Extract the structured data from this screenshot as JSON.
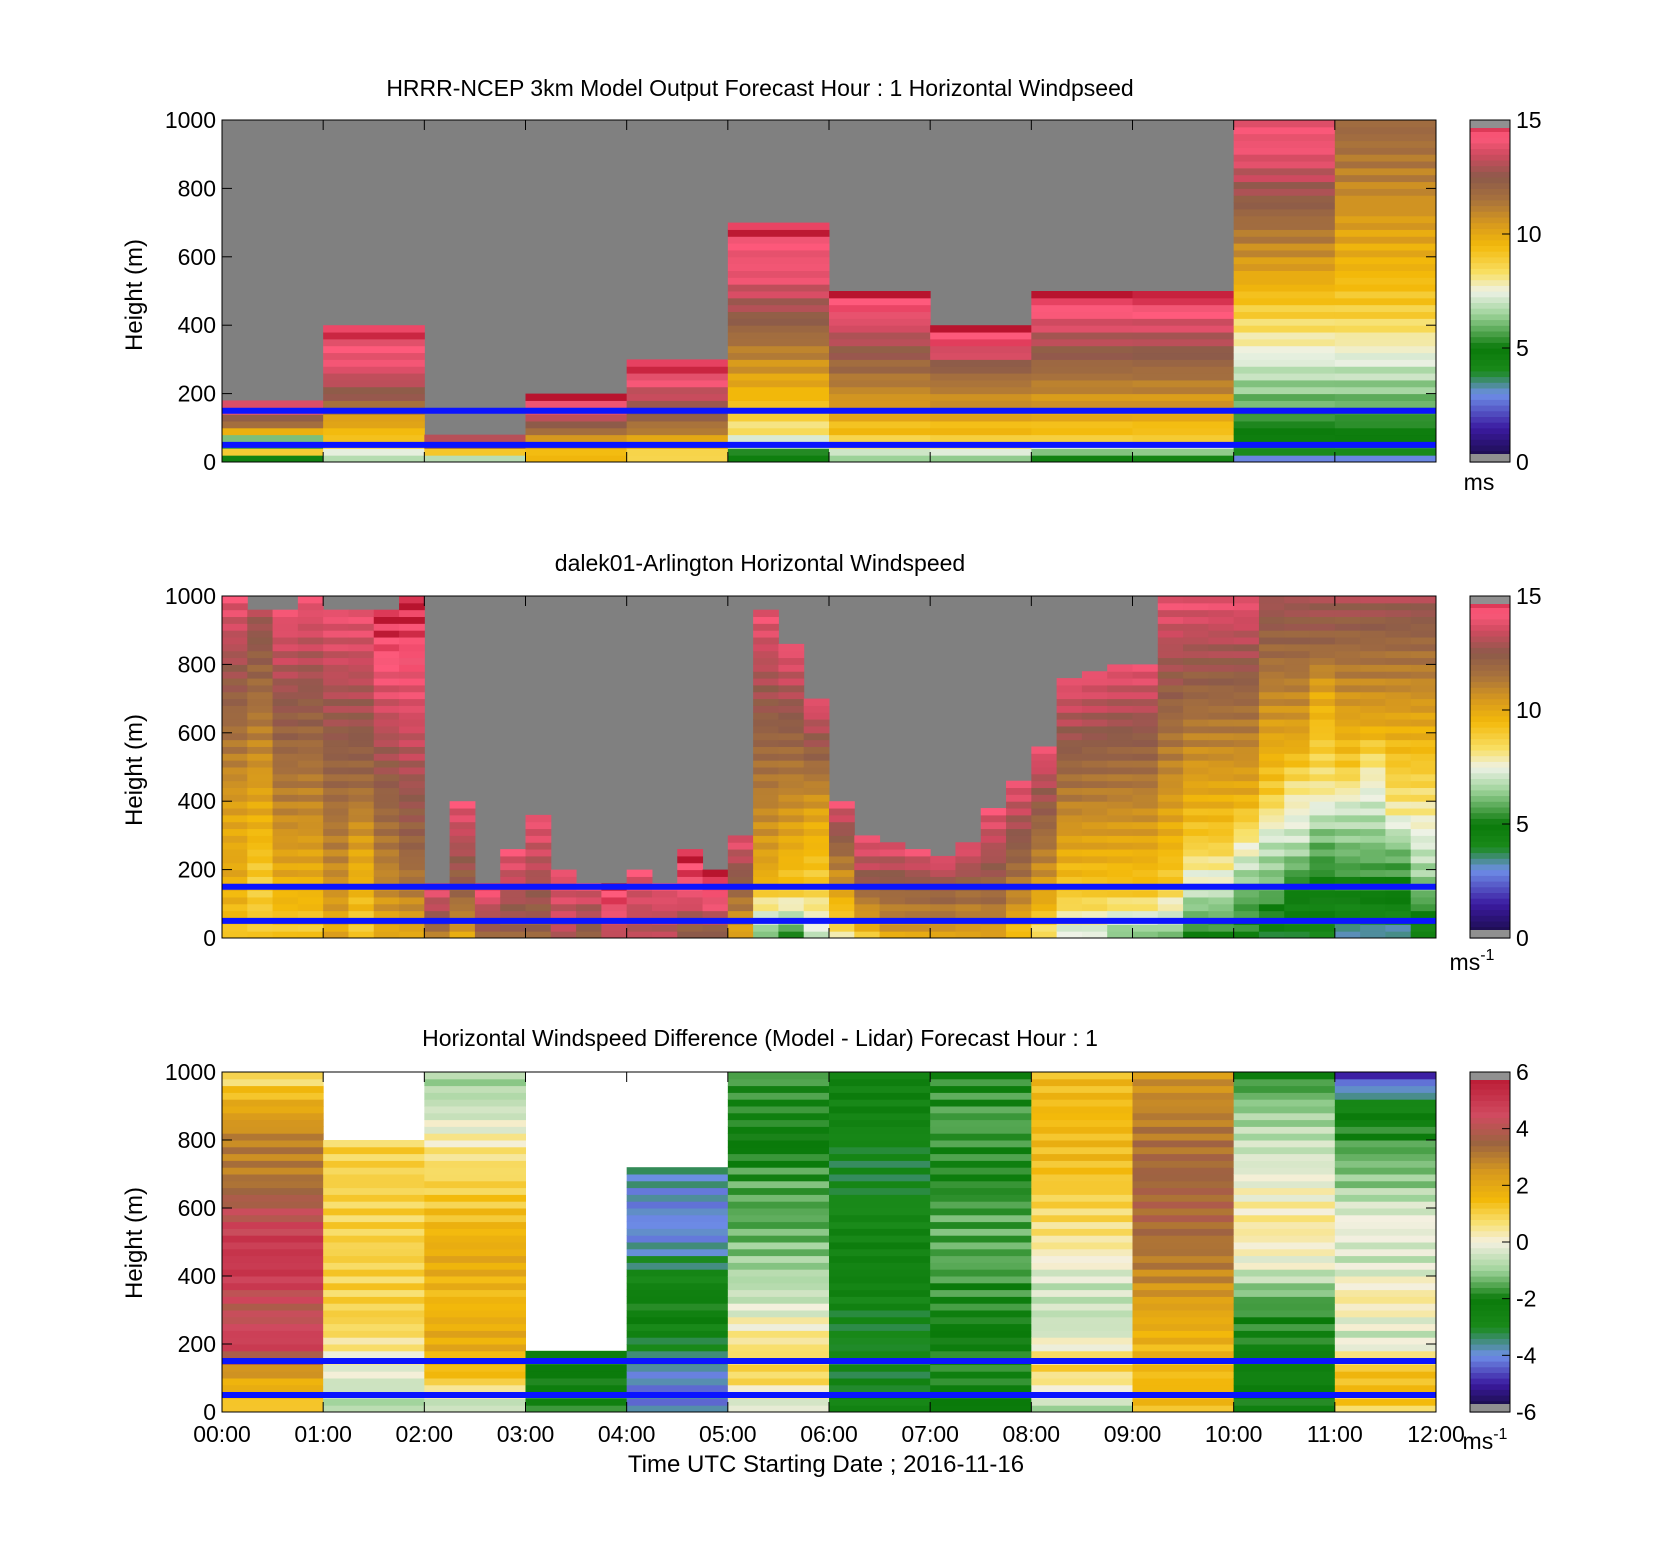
{
  "figure": {
    "xlabel": "Time UTC  Starting Date ; 2016-11-16",
    "xticks": [
      "00:00",
      "01:00",
      "02:00",
      "03:00",
      "04:00",
      "05:00",
      "06:00",
      "07:00",
      "08:00",
      "09:00",
      "10:00",
      "11:00",
      "12:00"
    ]
  },
  "guide_lines": {
    "color": "#0a14ff",
    "heights_m": [
      150,
      50
    ]
  },
  "chart_data": [
    {
      "type": "heatmap",
      "title": "HRRR-NCEP 3km Model Output   Forecast Hour : 1 Horizontal Windpseed",
      "ylabel": "Height (m)",
      "ylim": [
        0,
        1000
      ],
      "yticks": [
        "0",
        "200",
        "400",
        "600",
        "800",
        "1000"
      ],
      "x_hours": [
        0,
        12
      ],
      "colorbar": {
        "min": 0,
        "max": 15,
        "ticks": [
          "0",
          "5",
          "10",
          "15"
        ],
        "unit": "ms",
        "unit_sup": ""
      },
      "missing_color": "#808080",
      "guide_lines_m": [
        150,
        50
      ],
      "columns": [
        {
          "t": "00:00",
          "top_m": 170,
          "profile": [
            2,
            9,
            4,
            10,
            12,
            14,
            14
          ]
        },
        {
          "t": "01:00",
          "top_m": 400,
          "profile": [
            6,
            9,
            10,
            12,
            13,
            14,
            14,
            15
          ]
        },
        {
          "t": "02:00",
          "top_m": 80,
          "profile": [
            5,
            9,
            12,
            14
          ]
        },
        {
          "t": "03:00",
          "top_m": 200,
          "profile": [
            9,
            10,
            11,
            13,
            14,
            15
          ]
        },
        {
          "t": "04:00",
          "top_m": 300,
          "profile": [
            8,
            10,
            12,
            13,
            14,
            15
          ]
        },
        {
          "t": "05:00",
          "top_m": 700,
          "profile": [
            4,
            8,
            9,
            10,
            11,
            12,
            13,
            14,
            14,
            15
          ]
        },
        {
          "t": "06:00",
          "top_m": 500,
          "profile": [
            6,
            9,
            10,
            11,
            12,
            13,
            14,
            15
          ]
        },
        {
          "t": "07:00",
          "top_m": 400,
          "profile": [
            6,
            9,
            10,
            11,
            12,
            14,
            15
          ]
        },
        {
          "t": "08:00",
          "top_m": 500,
          "profile": [
            4,
            9,
            10,
            11,
            12,
            13,
            14,
            15
          ]
        },
        {
          "t": "09:00",
          "top_m": 500,
          "profile": [
            4,
            9,
            10,
            11,
            12,
            13,
            14,
            15
          ]
        },
        {
          "t": "10:00",
          "top_m": 1000,
          "profile": [
            3,
            5,
            6,
            7,
            8,
            9,
            10,
            11,
            12,
            13,
            14,
            14
          ]
        },
        {
          "t": "11:00",
          "top_m": 1000,
          "profile": [
            3,
            5,
            6,
            7,
            8,
            9,
            9.5,
            10,
            10.5,
            11,
            11.5,
            12
          ]
        }
      ]
    },
    {
      "type": "heatmap",
      "title": "dalek01-Arlington  Horizontal Windspeed",
      "ylabel": "Height (m)",
      "ylim": [
        0,
        1000
      ],
      "yticks": [
        "0",
        "200",
        "400",
        "600",
        "800",
        "1000"
      ],
      "x_hours": [
        0,
        12
      ],
      "colorbar": {
        "min": 0,
        "max": 15,
        "ticks": [
          "0",
          "5",
          "10",
          "15"
        ],
        "unit": "ms",
        "unit_sup": "-1"
      },
      "missing_color": "#808080",
      "guide_lines_m": [
        150,
        50
      ],
      "columns": [
        {
          "t": "00:00",
          "top_m": 1000,
          "profile": [
            9,
            10,
            10,
            11,
            12,
            13,
            14
          ]
        },
        {
          "t": "00:15",
          "top_m": 950,
          "profile": [
            9,
            9,
            10,
            11,
            12,
            13
          ]
        },
        {
          "t": "00:30",
          "top_m": 950,
          "profile": [
            9,
            10,
            11,
            12,
            13,
            14
          ]
        },
        {
          "t": "00:45",
          "top_m": 1000,
          "profile": [
            9,
            10,
            11,
            12,
            13,
            14
          ]
        },
        {
          "t": "01:00",
          "top_m": 950,
          "profile": [
            10,
            11,
            12,
            13,
            14
          ]
        },
        {
          "t": "01:15",
          "top_m": 950,
          "profile": [
            9,
            10,
            12,
            13,
            14
          ]
        },
        {
          "t": "01:30",
          "top_m": 950,
          "profile": [
            10,
            11,
            12,
            13,
            14,
            15
          ]
        },
        {
          "t": "01:45",
          "top_m": 1000,
          "profile": [
            10,
            12,
            13,
            14,
            15
          ]
        },
        {
          "t": "02:00",
          "top_m": 150,
          "profile": [
            11,
            13,
            14
          ]
        },
        {
          "t": "02:15",
          "top_m": 400,
          "profile": [
            10,
            12,
            13,
            14
          ]
        },
        {
          "t": "02:30",
          "top_m": 150,
          "profile": [
            12,
            13,
            15
          ]
        },
        {
          "t": "02:45",
          "top_m": 250,
          "profile": [
            12,
            13,
            14
          ]
        },
        {
          "t": "03:00",
          "top_m": 350,
          "profile": [
            12,
            13,
            14
          ]
        },
        {
          "t": "03:15",
          "top_m": 200,
          "profile": [
            13,
            14
          ]
        },
        {
          "t": "03:30",
          "top_m": 150,
          "profile": [
            12,
            14
          ]
        },
        {
          "t": "03:45",
          "top_m": 150,
          "profile": [
            13,
            15
          ]
        },
        {
          "t": "04:00",
          "top_m": 200,
          "profile": [
            13,
            14
          ]
        },
        {
          "t": "04:15",
          "top_m": 150,
          "profile": [
            13,
            14
          ]
        },
        {
          "t": "04:30",
          "top_m": 250,
          "profile": [
            12,
            14,
            15
          ]
        },
        {
          "t": "04:45",
          "top_m": 200,
          "profile": [
            12,
            14,
            15
          ]
        },
        {
          "t": "05:00",
          "top_m": 300,
          "profile": [
            10,
            12,
            14
          ]
        },
        {
          "t": "05:15",
          "top_m": 950,
          "profile": [
            6,
            10,
            11,
            12,
            13,
            14
          ]
        },
        {
          "t": "05:30",
          "top_m": 850,
          "profile": [
            5,
            9,
            10,
            11,
            12,
            13,
            14
          ]
        },
        {
          "t": "05:45",
          "top_m": 700,
          "profile": [
            7,
            9,
            10,
            12,
            14
          ]
        },
        {
          "t": "06:00",
          "top_m": 400,
          "profile": [
            8,
            10,
            12,
            14
          ]
        },
        {
          "t": "06:15",
          "top_m": 300,
          "profile": [
            9,
            11,
            13,
            14
          ]
        },
        {
          "t": "06:30",
          "top_m": 280,
          "profile": [
            10,
            12,
            14
          ]
        },
        {
          "t": "06:45",
          "top_m": 260,
          "profile": [
            10,
            12,
            14
          ]
        },
        {
          "t": "07:00",
          "top_m": 240,
          "profile": [
            10,
            12,
            14
          ]
        },
        {
          "t": "07:15",
          "top_m": 270,
          "profile": [
            10,
            12,
            14
          ]
        },
        {
          "t": "07:30",
          "top_m": 380,
          "profile": [
            10,
            12,
            13,
            14
          ]
        },
        {
          "t": "07:45",
          "top_m": 450,
          "profile": [
            9,
            11,
            12,
            13,
            14
          ]
        },
        {
          "t": "08:00",
          "top_m": 550,
          "profile": [
            8,
            10,
            11,
            12,
            13,
            14
          ]
        },
        {
          "t": "08:15",
          "top_m": 750,
          "profile": [
            7,
            9,
            10,
            11,
            12,
            13,
            14
          ]
        },
        {
          "t": "08:30",
          "top_m": 780,
          "profile": [
            7,
            9,
            10,
            11,
            12,
            13,
            14
          ]
        },
        {
          "t": "08:45",
          "top_m": 800,
          "profile": [
            6,
            9,
            10,
            11,
            12,
            13,
            14
          ]
        },
        {
          "t": "09:00",
          "top_m": 800,
          "profile": [
            6,
            9,
            10,
            11,
            12,
            13,
            14
          ]
        },
        {
          "t": "09:15",
          "top_m": 1000,
          "profile": [
            6,
            9,
            10,
            11,
            12,
            13,
            14
          ]
        },
        {
          "t": "09:30",
          "top_m": 1000,
          "profile": [
            5,
            7,
            9,
            10,
            11,
            12,
            13,
            14
          ]
        },
        {
          "t": "09:45",
          "top_m": 1000,
          "profile": [
            5,
            7,
            9,
            10,
            11,
            12,
            13,
            14
          ]
        },
        {
          "t": "10:00",
          "top_m": 1000,
          "profile": [
            5,
            6,
            8,
            10,
            11,
            12,
            13,
            14
          ]
        },
        {
          "t": "10:15",
          "top_m": 1000,
          "profile": [
            4,
            6,
            7,
            9,
            10,
            11,
            12,
            13
          ]
        },
        {
          "t": "10:30",
          "top_m": 1000,
          "profile": [
            4,
            5,
            7,
            8,
            10,
            11,
            12,
            13
          ]
        },
        {
          "t": "10:45",
          "top_m": 1000,
          "profile": [
            4,
            5,
            6,
            8,
            9,
            10,
            12,
            13
          ]
        },
        {
          "t": "11:00",
          "top_m": 1000,
          "profile": [
            3,
            5,
            6,
            7,
            9,
            10,
            11,
            12,
            13
          ]
        },
        {
          "t": "11:15",
          "top_m": 1000,
          "profile": [
            3,
            5,
            6,
            7,
            8,
            10,
            11,
            12,
            13
          ]
        },
        {
          "t": "11:30",
          "top_m": 1000,
          "profile": [
            3,
            5,
            6,
            8,
            9,
            10,
            11,
            12,
            13
          ]
        },
        {
          "t": "11:45",
          "top_m": 1000,
          "profile": [
            4,
            6,
            7,
            8,
            9,
            10,
            11,
            12,
            13
          ]
        }
      ]
    },
    {
      "type": "heatmap",
      "title": "Horizontal Windspeed Difference (Model - Lidar) Forecast Hour : 1",
      "ylabel": "Height (m)",
      "ylim": [
        0,
        1000
      ],
      "yticks": [
        "0",
        "200",
        "400",
        "600",
        "800",
        "1000"
      ],
      "x_hours": [
        0,
        12
      ],
      "colorbar": {
        "min": -6,
        "max": 6,
        "ticks": [
          "-6",
          "-4",
          "-2",
          "0",
          "2",
          "4",
          "6"
        ],
        "unit": "ms",
        "unit_sup": "-1"
      },
      "missing_color": "#ffffff",
      "guide_lines_m": [
        150,
        50
      ],
      "columns": [
        {
          "t": "00:00",
          "top_m": 1000,
          "profile": [
            1,
            2,
            5,
            4,
            5,
            5,
            4,
            3,
            3,
            2,
            0.5
          ]
        },
        {
          "t": "01:00",
          "top_m": 800,
          "profile": [
            -1,
            1,
            1,
            1
          ]
        },
        {
          "t": "02:00",
          "top_m": 1000,
          "profile": [
            -1,
            1.5,
            2,
            1.5,
            2,
            1.5,
            1,
            0.5,
            -0.5,
            -1
          ]
        },
        {
          "t": "03:00",
          "top_m": 180,
          "profile": [
            -2,
            -2
          ]
        },
        {
          "t": "04:00",
          "top_m": 720,
          "profile": [
            -4,
            -4,
            -3,
            -2,
            -3,
            -4,
            -4,
            -3.5
          ]
        },
        {
          "t": "05:00",
          "top_m": 1000,
          "profile": [
            -0.5,
            1,
            0.5,
            -0.5,
            -1,
            -1.5,
            -1.5,
            -2,
            -2,
            -1.5
          ]
        },
        {
          "t": "06:00",
          "top_m": 1000,
          "profile": [
            -2.5,
            -3,
            -3,
            -2.5,
            -2.5,
            -3,
            -3,
            -2.5,
            -2.5
          ]
        },
        {
          "t": "07:00",
          "top_m": 1000,
          "profile": [
            -2,
            -2,
            -2,
            -1.5,
            -1.5,
            -2,
            -1.5,
            -2
          ]
        },
        {
          "t": "08:00",
          "top_m": 1000,
          "profile": [
            -1,
            1,
            -0.5,
            -0.5,
            0.5,
            1,
            1.5,
            1.5,
            1.5
          ]
        },
        {
          "t": "09:00",
          "top_m": 1000,
          "profile": [
            1.5,
            1.5,
            2,
            3,
            3.5,
            3.5,
            3,
            2.5
          ]
        },
        {
          "t": "10:00",
          "top_m": 1000,
          "profile": [
            -2,
            -2.5,
            -2,
            -1.5,
            0,
            0.5,
            0,
            -0.5,
            -1,
            -2
          ]
        },
        {
          "t": "11:00",
          "top_m": 1000,
          "profile": [
            1,
            1.5,
            -0.5,
            0.5,
            -0.5,
            0,
            -1,
            -1.5,
            -2.5,
            -5
          ]
        }
      ]
    }
  ]
}
